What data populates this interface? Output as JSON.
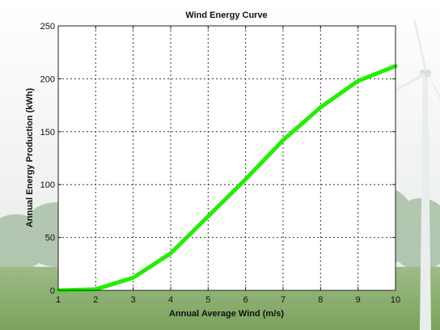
{
  "chart_data": {
    "type": "line",
    "title": "Wind Energy Curve",
    "xlabel": "Annual Average Wind (m/s)",
    "ylabel": "Annual Energy Production (kWh)",
    "xlim": [
      1,
      10
    ],
    "ylim": [
      0,
      250
    ],
    "xticks": [
      1,
      2,
      3,
      4,
      5,
      6,
      7,
      8,
      9,
      10
    ],
    "yticks": [
      0,
      50,
      100,
      150,
      200,
      250
    ],
    "grid": true,
    "series": [
      {
        "color": "#22ee00",
        "x": [
          1,
          2,
          3,
          4,
          5,
          6,
          7,
          8,
          9,
          10
        ],
        "y": [
          0,
          1,
          12,
          35,
          70,
          105,
          142,
          173,
          198,
          212
        ]
      }
    ]
  }
}
